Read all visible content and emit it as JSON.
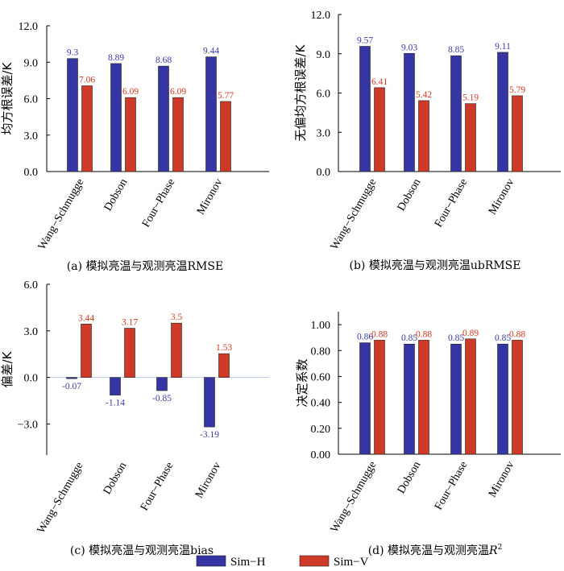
{
  "colors": {
    "sim_h": "#3535a3",
    "sim_v": "#cf3a28",
    "label_h": "#3b3ba8",
    "label_v": "#d23a22",
    "zero_line": "#b9c8dc"
  },
  "legend": [
    {
      "name": "Sim−H",
      "color": "#3535a3"
    },
    {
      "name": "Sim−V",
      "color": "#cf3a28"
    }
  ],
  "chart_data": [
    {
      "id": "a",
      "type": "bar",
      "caption": "(a) 模拟亮温与观测亮温RMSE",
      "ylabel": "均方根误差/K",
      "categories": [
        "Wang−Schmugge",
        "Dobson",
        "Four−Phase",
        "Mironov"
      ],
      "ylim": [
        0,
        12
      ],
      "yticks": [
        "0.0",
        "3.0",
        "6.0",
        "9.0",
        "12.0"
      ],
      "tick_values": [
        0,
        3,
        6,
        9,
        12
      ],
      "series": [
        {
          "name": "Sim−H",
          "values": [
            9.3,
            8.89,
            8.68,
            9.44
          ],
          "labels": [
            "9.3",
            "8.89",
            "8.68",
            "9.44"
          ]
        },
        {
          "name": "Sim−V",
          "values": [
            7.06,
            6.09,
            6.09,
            5.77
          ],
          "labels": [
            "7.06",
            "6.09",
            "6.09",
            "5.77"
          ]
        }
      ]
    },
    {
      "id": "b",
      "type": "bar",
      "caption": "(b) 模拟亮温与观测亮温ubRMSE",
      "ylabel": "无偏均方根误差/K",
      "categories": [
        "Wang−Schmugge",
        "Dobson",
        "Four−Phase",
        "Mironov"
      ],
      "ylim": [
        0,
        12
      ],
      "yticks": [
        "0.0",
        "3.0",
        "6.0",
        "9.0",
        "12.0"
      ],
      "tick_values": [
        0,
        3,
        6,
        9,
        12
      ],
      "series": [
        {
          "name": "Sim−H",
          "values": [
            9.57,
            9.03,
            8.85,
            9.11
          ],
          "labels": [
            "9.57",
            "9.03",
            "8.85",
            "9.11"
          ]
        },
        {
          "name": "Sim−V",
          "values": [
            6.41,
            5.42,
            5.19,
            5.79
          ],
          "labels": [
            "6.41",
            "5.42",
            "5.19",
            "5.79"
          ]
        }
      ]
    },
    {
      "id": "c",
      "type": "bar",
      "caption": "(c) 模拟亮温与观测亮温bias",
      "ylabel": "偏差/K",
      "categories": [
        "Wang−Schmugge",
        "Dobson",
        "Four−Phase",
        "Mironov"
      ],
      "ylim": [
        -5,
        6
      ],
      "yticks": [
        "−3.0",
        "0.0",
        "3.0",
        "6.0"
      ],
      "tick_values": [
        -3,
        0,
        3,
        6
      ],
      "series": [
        {
          "name": "Sim−H",
          "values": [
            -0.07,
            -1.14,
            -0.85,
            -3.19
          ],
          "labels": [
            "-0.07",
            "-1.14",
            "-0.85",
            "-3.19"
          ]
        },
        {
          "name": "Sim−V",
          "values": [
            3.44,
            3.17,
            3.5,
            1.53
          ],
          "labels": [
            "3.44",
            "3.17",
            "3.5",
            "1.53"
          ]
        }
      ]
    },
    {
      "id": "d",
      "type": "bar",
      "caption": "(d) 模拟亮温与观测亮温",
      "caption_r": "R",
      "caption_sup": "2",
      "ylabel": "决定系数",
      "categories": [
        "Wang−Schmugge",
        "Dobson",
        "Four−Phase",
        "Mironov"
      ],
      "ylim": [
        0,
        1.1
      ],
      "yticks": [
        "0.00",
        "0.20",
        "0.40",
        "0.60",
        "0.80",
        "1.00"
      ],
      "tick_values": [
        0,
        0.2,
        0.4,
        0.6,
        0.8,
        1.0
      ],
      "series": [
        {
          "name": "Sim−H",
          "values": [
            0.86,
            0.85,
            0.85,
            0.85
          ],
          "labels": [
            "0.86",
            "0.85",
            "0.85",
            "0.85"
          ]
        },
        {
          "name": "Sim−V",
          "values": [
            0.88,
            0.88,
            0.89,
            0.88
          ],
          "labels": [
            "0.88",
            "0.88",
            "0.89",
            "0.88"
          ]
        }
      ]
    }
  ]
}
